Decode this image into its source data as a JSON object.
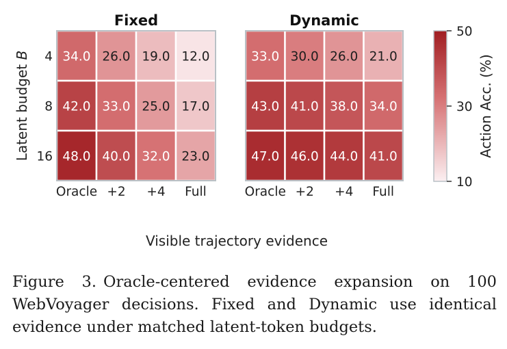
{
  "figure": {
    "caption_label": "Figure 3.",
    "caption_text": "Oracle-centered evidence expansion on 100 WebVoyager decisions. Fixed and Dynamic use identical evidence under matched latent-token budgets.",
    "shared_xlabel": "Visible trajectory evidence",
    "shared_ylabel": "Latent budget B"
  },
  "chart_data": [
    {
      "type": "heatmap",
      "title": "Fixed",
      "xlabel": "",
      "ylabel": "Latent budget B",
      "x_categories": [
        "Oracle",
        "+2",
        "+4",
        "Full"
      ],
      "y_categories": [
        "4",
        "8",
        "16"
      ],
      "values": [
        [
          34.0,
          26.0,
          19.0,
          12.0
        ],
        [
          42.0,
          33.0,
          25.0,
          17.0
        ],
        [
          48.0,
          40.0,
          32.0,
          23.0
        ]
      ]
    },
    {
      "type": "heatmap",
      "title": "Dynamic",
      "xlabel": "",
      "ylabel": "",
      "x_categories": [
        "Oracle",
        "+2",
        "+4",
        "Full"
      ],
      "y_categories": [],
      "values": [
        [
          33.0,
          30.0,
          26.0,
          21.0
        ],
        [
          43.0,
          41.0,
          38.0,
          34.0
        ],
        [
          47.0,
          46.0,
          44.0,
          41.0
        ]
      ]
    }
  ],
  "colorbar": {
    "label": "Action Acc. (%)",
    "min": 10,
    "max": 50,
    "ticks": [
      "50",
      "30",
      "10"
    ],
    "tick_values": [
      50,
      30,
      10
    ],
    "color_low": "#fbeff1",
    "color_high": "#a01e22"
  },
  "value_format_decimals": 1
}
